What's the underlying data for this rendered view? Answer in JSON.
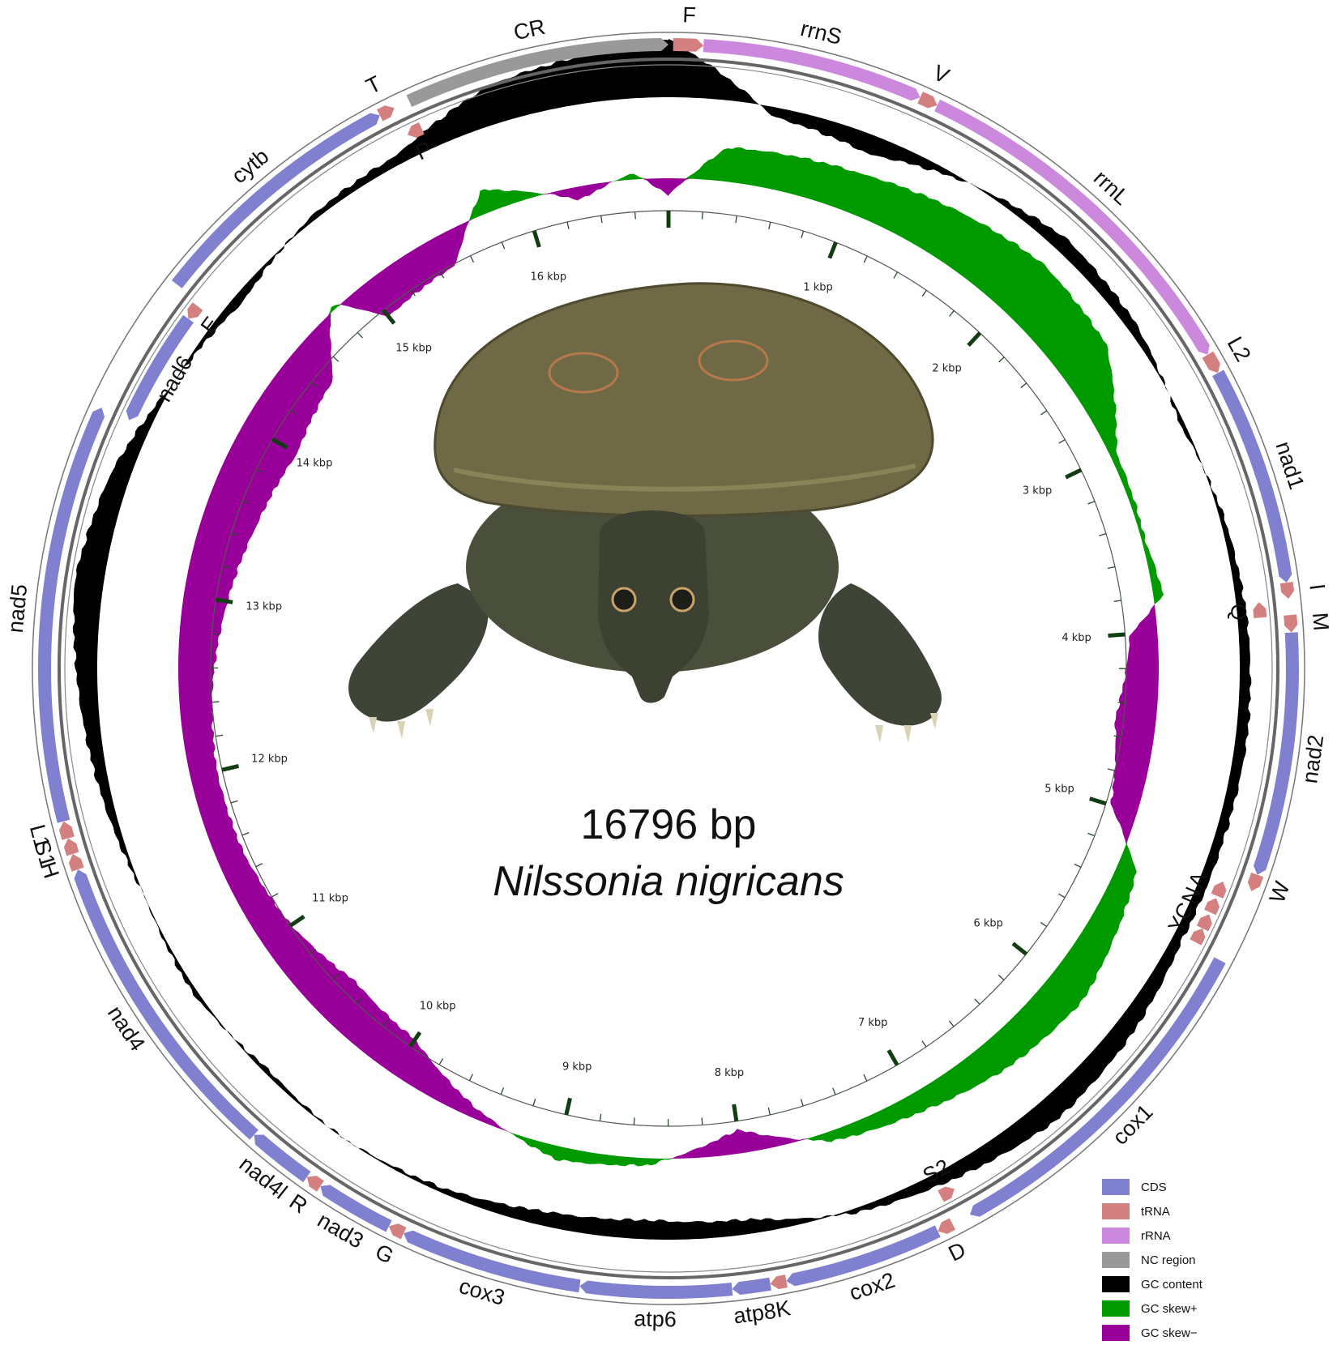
{
  "chart_data": {
    "type": "circular-genome-map",
    "genome_size": 16796,
    "size_label": "16796 bp",
    "species": "Nilssonia nigricans",
    "start_offset_bp": 0,
    "tick_labels": [
      "1 kbp",
      "2 kbp",
      "3 kbp",
      "4 kbp",
      "5 kbp",
      "6 kbp",
      "7 kbp",
      "8 kbp",
      "9 kbp",
      "10 kbp",
      "11 kbp",
      "12 kbp",
      "13 kbp",
      "14 kbp",
      "15 kbp",
      "16 kbp"
    ],
    "feature_colors": {
      "CDS": "#8080d0",
      "tRNA": "#d48080",
      "rRNA": "#cc88dd",
      "NC region": "#999999"
    },
    "features": [
      {
        "name": "F",
        "type": "tRNA",
        "start": 20,
        "end": 150,
        "strand": 1
      },
      {
        "name": "rrnS",
        "type": "rRNA",
        "start": 150,
        "end": 1110,
        "strand": 1
      },
      {
        "name": "V",
        "type": "tRNA",
        "start": 1110,
        "end": 1190,
        "strand": 1
      },
      {
        "name": "rrnL",
        "type": "rRNA",
        "start": 1190,
        "end": 2790,
        "strand": 1
      },
      {
        "name": "L2",
        "type": "tRNA",
        "start": 2790,
        "end": 2880,
        "strand": 1
      },
      {
        "name": "nad1",
        "type": "CDS",
        "start": 2880,
        "end": 3830,
        "strand": 1
      },
      {
        "name": "I",
        "type": "tRNA",
        "start": 3830,
        "end": 3900,
        "strand": 1
      },
      {
        "name": "Q",
        "type": "tRNA",
        "start": 3900,
        "end": 3970,
        "strand": -1
      },
      {
        "name": "M",
        "type": "tRNA",
        "start": 3970,
        "end": 4045,
        "strand": 1
      },
      {
        "name": "nad2",
        "type": "CDS",
        "start": 4045,
        "end": 5100,
        "strand": 1
      },
      {
        "name": "W",
        "type": "tRNA",
        "start": 5100,
        "end": 5175,
        "strand": 1
      },
      {
        "name": "A",
        "type": "tRNA",
        "start": 5180,
        "end": 5250,
        "strand": -1
      },
      {
        "name": "N",
        "type": "tRNA",
        "start": 5260,
        "end": 5330,
        "strand": -1
      },
      {
        "name": "C",
        "type": "tRNA",
        "start": 5340,
        "end": 5410,
        "strand": -1
      },
      {
        "name": "Y",
        "type": "tRNA",
        "start": 5410,
        "end": 5480,
        "strand": -1
      },
      {
        "name": "cox1",
        "type": "CDS",
        "start": 5500,
        "end": 7050,
        "strand": 1
      },
      {
        "name": "S2",
        "type": "tRNA",
        "start": 7055,
        "end": 7125,
        "strand": -1
      },
      {
        "name": "D",
        "type": "tRNA",
        "start": 7135,
        "end": 7205,
        "strand": 1
      },
      {
        "name": "cox2",
        "type": "CDS",
        "start": 7205,
        "end": 7890,
        "strand": 1
      },
      {
        "name": "K",
        "type": "tRNA",
        "start": 7890,
        "end": 7960,
        "strand": 1
      },
      {
        "name": "atp8",
        "type": "CDS",
        "start": 7960,
        "end": 8125,
        "strand": 1
      },
      {
        "name": "atp6",
        "type": "CDS",
        "start": 8125,
        "end": 8780,
        "strand": 1
      },
      {
        "name": "cox3",
        "type": "CDS",
        "start": 8780,
        "end": 9570,
        "strand": 1
      },
      {
        "name": "G",
        "type": "tRNA",
        "start": 9570,
        "end": 9640,
        "strand": 1
      },
      {
        "name": "nad3",
        "type": "CDS",
        "start": 9640,
        "end": 9980,
        "strand": 1
      },
      {
        "name": "R",
        "type": "tRNA",
        "start": 9980,
        "end": 10050,
        "strand": 1
      },
      {
        "name": "nad4l",
        "type": "CDS",
        "start": 10050,
        "end": 10340,
        "strand": 1
      },
      {
        "name": "nad4",
        "type": "CDS",
        "start": 10340,
        "end": 11720,
        "strand": 1
      },
      {
        "name": "H",
        "type": "tRNA",
        "start": 11720,
        "end": 11790,
        "strand": 1
      },
      {
        "name": "S1",
        "type": "tRNA",
        "start": 11790,
        "end": 11860,
        "strand": 1
      },
      {
        "name": "L1",
        "type": "tRNA",
        "start": 11860,
        "end": 11935,
        "strand": 1
      },
      {
        "name": "nad5",
        "type": "CDS",
        "start": 11935,
        "end": 13750,
        "strand": 1
      },
      {
        "name": "nad6",
        "type": "CDS",
        "start": 13750,
        "end": 14280,
        "strand": -1
      },
      {
        "name": "E",
        "type": "tRNA",
        "start": 14280,
        "end": 14350,
        "strand": -1
      },
      {
        "name": "cytb",
        "type": "CDS",
        "start": 14370,
        "end": 15510,
        "strand": 1
      },
      {
        "name": "T",
        "type": "tRNA",
        "start": 15510,
        "end": 15580,
        "strand": 1
      },
      {
        "name": "P",
        "type": "tRNA",
        "start": 15580,
        "end": 15650,
        "strand": -1
      },
      {
        "name": "CR",
        "type": "NC region",
        "start": 15650,
        "end": 16796,
        "strand": 1
      }
    ],
    "gc_content": [
      {
        "kbp": 0,
        "value": 0.06
      },
      {
        "kbp": 0.5,
        "value": -0.01
      },
      {
        "kbp": 1,
        "value": -0.02
      },
      {
        "kbp": 1.5,
        "value": 0.0
      },
      {
        "kbp": 2,
        "value": 0.015
      },
      {
        "kbp": 2.5,
        "value": 0.01
      },
      {
        "kbp": 3,
        "value": -0.005
      },
      {
        "kbp": 3.5,
        "value": 0.005
      },
      {
        "kbp": 4,
        "value": 0.01
      },
      {
        "kbp": 4.5,
        "value": 0.012
      },
      {
        "kbp": 5,
        "value": 0.01
      },
      {
        "kbp": 5.5,
        "value": 0.01
      },
      {
        "kbp": 6,
        "value": 0.02
      },
      {
        "kbp": 6.5,
        "value": 0.025
      },
      {
        "kbp": 7,
        "value": 0.015
      },
      {
        "kbp": 7.5,
        "value": 0.005
      },
      {
        "kbp": 8,
        "value": -0.015
      },
      {
        "kbp": 8.5,
        "value": -0.02
      },
      {
        "kbp": 9,
        "value": -0.015
      },
      {
        "kbp": 9.5,
        "value": -0.005
      },
      {
        "kbp": 10,
        "value": 0.0
      },
      {
        "kbp": 10.5,
        "value": -0.005
      },
      {
        "kbp": 11,
        "value": 0.005
      },
      {
        "kbp": 11.5,
        "value": 0.0
      },
      {
        "kbp": 12,
        "value": 0.01
      },
      {
        "kbp": 12.5,
        "value": 0.02
      },
      {
        "kbp": 13,
        "value": 0.03
      },
      {
        "kbp": 13.5,
        "value": 0.02
      },
      {
        "kbp": 14,
        "value": 0.0
      },
      {
        "kbp": 14.5,
        "value": -0.01
      },
      {
        "kbp": 15,
        "value": 0.005
      },
      {
        "kbp": 15.5,
        "value": 0.01
      },
      {
        "kbp": 16,
        "value": 0.04
      },
      {
        "kbp": 16.5,
        "value": 0.05
      }
    ],
    "gc_skew": [
      {
        "kbp": 0,
        "value": -0.05
      },
      {
        "kbp": 0.3,
        "value": 0.1
      },
      {
        "kbp": 1,
        "value": 0.12
      },
      {
        "kbp": 1.5,
        "value": 0.15
      },
      {
        "kbp": 2,
        "value": 0.18
      },
      {
        "kbp": 2.5,
        "value": 0.16
      },
      {
        "kbp": 3,
        "value": 0.02
      },
      {
        "kbp": 3.5,
        "value": 0.01
      },
      {
        "kbp": 3.8,
        "value": 0.03
      },
      {
        "kbp": 4,
        "value": -0.08
      },
      {
        "kbp": 4.5,
        "value": -0.12
      },
      {
        "kbp": 5,
        "value": -0.08
      },
      {
        "kbp": 5.3,
        "value": 0.06
      },
      {
        "kbp": 6,
        "value": 0.12
      },
      {
        "kbp": 6.5,
        "value": 0.1
      },
      {
        "kbp": 7,
        "value": 0.06
      },
      {
        "kbp": 7.5,
        "value": 0.03
      },
      {
        "kbp": 8,
        "value": -0.07
      },
      {
        "kbp": 8.5,
        "value": 0.02
      },
      {
        "kbp": 9,
        "value": 0.04
      },
      {
        "kbp": 9.5,
        "value": -0.03
      },
      {
        "kbp": 10,
        "value": -0.12
      },
      {
        "kbp": 10.5,
        "value": -0.14
      },
      {
        "kbp": 11,
        "value": -0.1
      },
      {
        "kbp": 11.5,
        "value": -0.08
      },
      {
        "kbp": 12,
        "value": -0.08
      },
      {
        "kbp": 12.5,
        "value": -0.1
      },
      {
        "kbp": 13,
        "value": -0.13
      },
      {
        "kbp": 13.5,
        "value": -0.16
      },
      {
        "kbp": 14,
        "value": -0.18
      },
      {
        "kbp": 14.5,
        "value": -0.14
      },
      {
        "kbp": 14.8,
        "value": 0.02
      },
      {
        "kbp": 15,
        "value": -0.12
      },
      {
        "kbp": 15.5,
        "value": -0.1
      },
      {
        "kbp": 15.8,
        "value": 0.07
      },
      {
        "kbp": 16.3,
        "value": -0.04
      },
      {
        "kbp": 16.6,
        "value": 0.02
      }
    ],
    "legend": [
      {
        "label": "CDS",
        "color": "#8080d0"
      },
      {
        "label": "tRNA",
        "color": "#d48080"
      },
      {
        "label": "rRNA",
        "color": "#cc88dd"
      },
      {
        "label": "NC region",
        "color": "#999999"
      },
      {
        "label": "GC content",
        "color": "#000000"
      },
      {
        "label": "GC skew+",
        "color": "#009900"
      },
      {
        "label": "GC skew−",
        "color": "#990099"
      }
    ]
  },
  "photo": {
    "subject": "turtle-photo",
    "shell_color": "#6f6a45"
  }
}
